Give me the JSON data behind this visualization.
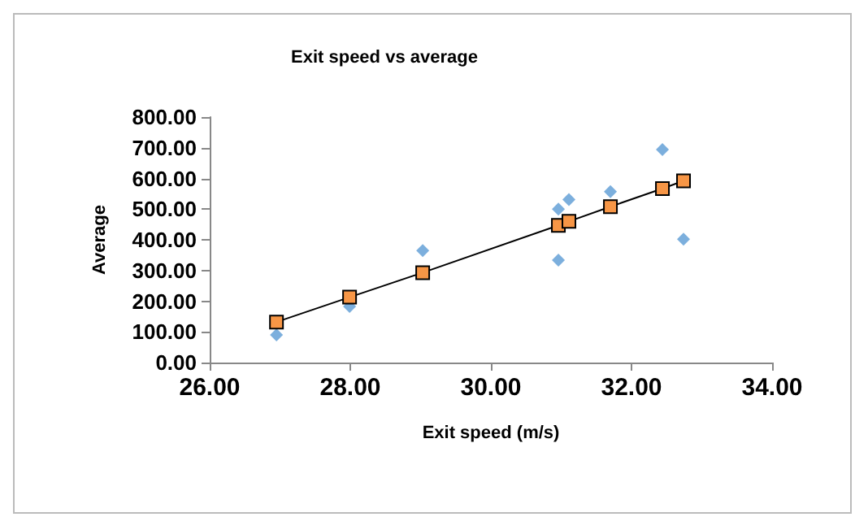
{
  "chart_data": {
    "type": "scatter",
    "title": "Exit speed vs average",
    "xlabel": "Exit speed (m/s)",
    "ylabel": "Average",
    "series": [
      {
        "marker": "diamond",
        "color": "#5b9bd5",
        "x": [
          26.95,
          27.99,
          29.03,
          30.96,
          30.96,
          31.11,
          31.7,
          32.44,
          32.74
        ],
        "values": [
          90,
          183,
          365,
          334,
          500,
          531,
          557,
          694,
          402
        ]
      },
      {
        "type": "line",
        "marker": "square",
        "color": "#f79646",
        "x": [
          26.95,
          27.99,
          29.03,
          30.96,
          31.11,
          31.7,
          32.44,
          32.74
        ],
        "values": [
          132,
          213,
          293,
          447,
          460,
          508,
          567,
          592
        ]
      }
    ],
    "xlim": [
      26,
      34
    ],
    "xticks": [
      {
        "value": 26,
        "label": "26.00"
      },
      {
        "value": 28,
        "label": "28.00"
      },
      {
        "value": 30,
        "label": "30.00"
      },
      {
        "value": 32,
        "label": "32.00"
      },
      {
        "value": 34,
        "label": "34.00"
      }
    ],
    "ylim": [
      0,
      800
    ],
    "yticks": [
      {
        "value": 0,
        "label": "0.00"
      },
      {
        "value": 100,
        "label": "100.00"
      },
      {
        "value": 200,
        "label": "200.00"
      },
      {
        "value": 300,
        "label": "300.00"
      },
      {
        "value": 400,
        "label": "400.00"
      },
      {
        "value": 500,
        "label": "500.00"
      },
      {
        "value": 600,
        "label": "600.00"
      },
      {
        "value": 700,
        "label": "700.00"
      },
      {
        "value": 800,
        "label": "800.00"
      }
    ],
    "grid": false
  }
}
